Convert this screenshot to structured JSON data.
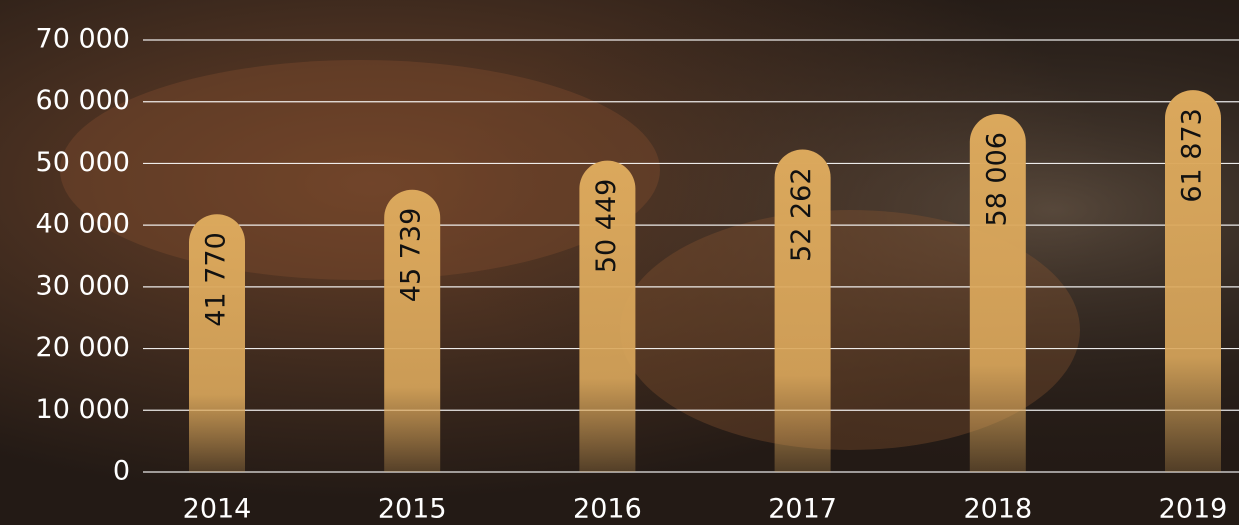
{
  "chart_data": {
    "type": "bar",
    "categories": [
      "2014",
      "2015",
      "2016",
      "2017",
      "2018",
      "2019"
    ],
    "values": [
      41770,
      45739,
      50449,
      52262,
      58006,
      61873
    ],
    "value_labels": [
      "41 770",
      "45 739",
      "50 449",
      "52 262",
      "58 006",
      "61 873"
    ],
    "color": "#dba85c",
    "ylim": [
      0,
      70000
    ],
    "yticks": [
      {
        "value": 0,
        "label": "0"
      },
      {
        "value": 10000,
        "label": "10 000"
      },
      {
        "value": 20000,
        "label": "20 000"
      },
      {
        "value": 30000,
        "label": "30 000"
      },
      {
        "value": 40000,
        "label": "40 000"
      },
      {
        "value": 50000,
        "label": "50 000"
      },
      {
        "value": 60000,
        "label": "60 000"
      },
      {
        "value": 70000,
        "label": "70 000"
      }
    ],
    "grid": true
  }
}
